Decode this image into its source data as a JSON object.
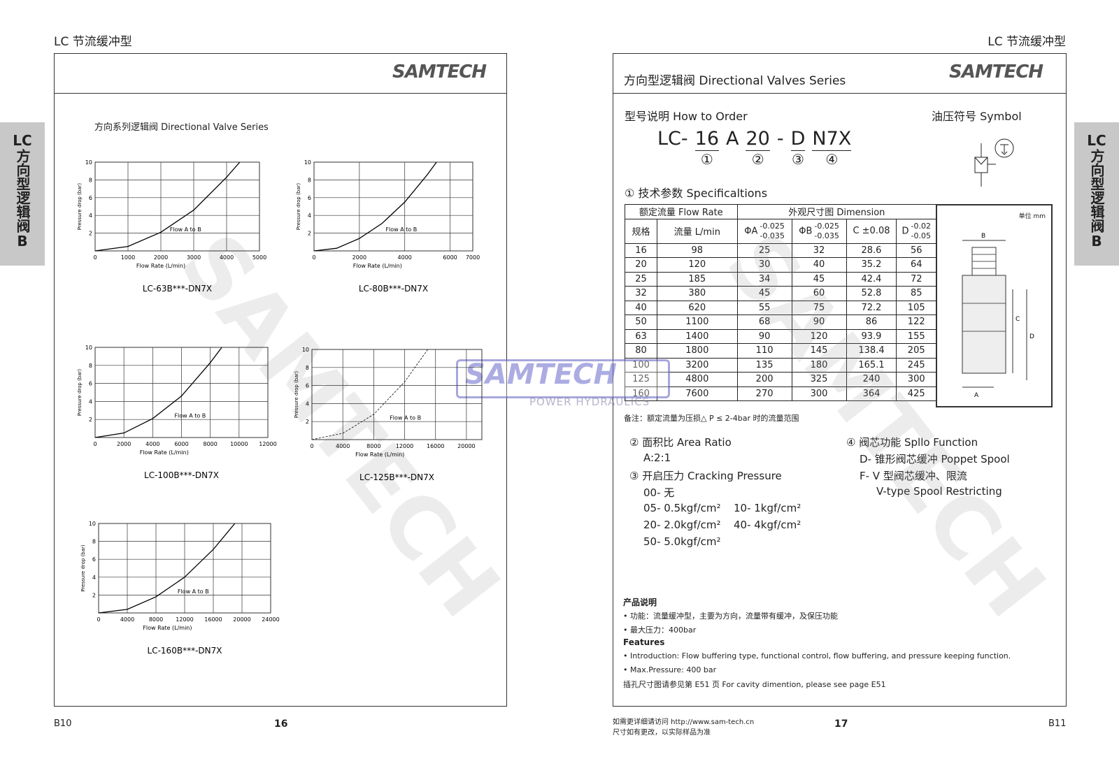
{
  "header": {
    "left": "LC 节流缓冲型",
    "right": "LC 节流缓冲型"
  },
  "side_tab": [
    "LC",
    "方向型逻辑阀",
    "B"
  ],
  "watermark": {
    "brand": "SAMTECH",
    "tagline": "POWER HYDRAULICS"
  },
  "left_page": {
    "logo": "SAMTECH",
    "section_title": "方向系列逻辑阀 Directional Valve Series",
    "charts": [
      {
        "type": "line",
        "title": "LC-63B***-DN7X",
        "x_label": "Flow Rate (L/min)",
        "y_label": "Pressure drop (bar)",
        "annotation": "Flow A to B",
        "color": "#000000",
        "xlim": [
          0,
          5000
        ],
        "ylim": [
          0,
          10
        ],
        "xticks": [
          0,
          1000,
          2000,
          3000,
          4000,
          5000
        ],
        "yticks": [
          2,
          4,
          6,
          8,
          10
        ],
        "x": [
          0,
          1000,
          2000,
          3000,
          4000,
          4400
        ],
        "values": [
          0,
          0.5,
          2.1,
          4.6,
          8.3,
          10
        ]
      },
      {
        "type": "line",
        "title": "LC-80B***-DN7X",
        "x_label": "Flow Rate (L/min)",
        "y_label": "Pressure drop (bar)",
        "annotation": "Flow A to B",
        "color": "#000000",
        "xlim": [
          0,
          7000
        ],
        "ylim": [
          0,
          10
        ],
        "xticks": [
          0,
          2000,
          4000,
          6000,
          7000
        ],
        "yticks": [
          2,
          4,
          6,
          8,
          10
        ],
        "x": [
          0,
          1000,
          2000,
          3000,
          4000,
          5000,
          5400
        ],
        "values": [
          0,
          0.3,
          1.4,
          3.1,
          5.5,
          8.6,
          10
        ]
      },
      {
        "type": "line",
        "title": "LC-100B***-DN7X",
        "x_label": "Flow Rate (L/min)",
        "y_label": "Pressure drop (bar)",
        "annotation": "Flow A to B",
        "color": "#000000",
        "xlim": [
          0,
          12000
        ],
        "ylim": [
          0,
          10
        ],
        "xticks": [
          0,
          2000,
          4000,
          6000,
          8000,
          10000,
          12000
        ],
        "yticks": [
          2,
          4,
          6,
          8,
          10
        ],
        "x": [
          0,
          2000,
          4000,
          6000,
          8000,
          8800
        ],
        "values": [
          0,
          0.5,
          2.1,
          4.6,
          8.3,
          10
        ]
      },
      {
        "type": "line",
        "title": "LC-125B***-DN7X",
        "x_label": "Flow Rate (L/min)",
        "y_label": "Pressure drop (bar)",
        "annotation": "Flow A to B",
        "color": "#000000",
        "line_style": "dashed",
        "xlim": [
          0,
          22000
        ],
        "ylim": [
          0,
          10
        ],
        "xticks": [
          0,
          4000,
          8000,
          12000,
          16000,
          20000
        ],
        "yticks": [
          2,
          4,
          6,
          8,
          10
        ],
        "x": [
          0,
          4000,
          8000,
          12000,
          15000
        ],
        "values": [
          0,
          0.7,
          2.8,
          6.4,
          10
        ]
      },
      {
        "type": "line",
        "title": "LC-160B***-DN7X",
        "x_label": "Flow Rate (L/min)",
        "y_label": "Pressure drop (bar)",
        "annotation": "Flow A to B",
        "color": "#000000",
        "xlim": [
          0,
          24000
        ],
        "ylim": [
          0,
          10
        ],
        "xticks": [
          0,
          4000,
          8000,
          12000,
          16000,
          20000,
          24000
        ],
        "yticks": [
          2,
          4,
          6,
          8,
          10
        ],
        "x": [
          0,
          4000,
          8000,
          12000,
          16000,
          19000
        ],
        "values": [
          0,
          0.4,
          1.8,
          4,
          7.1,
          10
        ]
      }
    ],
    "footer_code": "B10",
    "page_number": "16"
  },
  "right_page": {
    "title": "方向型逻辑阀 Directional Valves Series",
    "logo": "SAMTECH",
    "how_to_order": "型号说明 How to Order",
    "symbol_label": "油压符号 Symbol",
    "order_code": [
      {
        "text": "LC-"
      },
      {
        "text": "16",
        "marker": "①"
      },
      {
        "text": "A"
      },
      {
        "text": "20",
        "marker": "②"
      },
      {
        "text": "-"
      },
      {
        "text": "D",
        "marker": "③"
      },
      {
        "text": "N7X",
        "marker": "④"
      }
    ],
    "specs_title": "① 技术参数 Specificaltions",
    "table": {
      "group_headers": [
        "额定流量 Flow Rate",
        "外观尺寸图 Dimension"
      ],
      "columns": [
        {
          "label": "规格"
        },
        {
          "label": "流量 L/min"
        },
        {
          "label": "ΦA",
          "upper": "-0.025",
          "lower": "-0.035"
        },
        {
          "label": "ΦB",
          "upper": "-0.025",
          "lower": "-0.035"
        },
        {
          "label": "C ±0.08"
        },
        {
          "label": "D",
          "upper": "-0.02",
          "lower": "-0.05"
        }
      ],
      "rows": [
        [
          16,
          98,
          25,
          32,
          28.6,
          56
        ],
        [
          20,
          120,
          30,
          40,
          35.2,
          64
        ],
        [
          25,
          185,
          34,
          45,
          42.4,
          72
        ],
        [
          32,
          380,
          45,
          60,
          52.8,
          85
        ],
        [
          40,
          620,
          55,
          75,
          72.2,
          105
        ],
        [
          50,
          1100,
          68,
          90,
          86,
          122
        ],
        [
          63,
          1400,
          90,
          120,
          93.9,
          155
        ],
        [
          80,
          1800,
          110,
          145,
          138.4,
          205
        ],
        [
          100,
          3200,
          135,
          180,
          165.1,
          245
        ],
        [
          125,
          4800,
          200,
          325,
          240,
          300
        ],
        [
          160,
          7600,
          270,
          300,
          364,
          425
        ]
      ]
    },
    "drawing": {
      "unit": "单位 mm",
      "labels": [
        "B",
        "C",
        "D",
        "A"
      ]
    },
    "note": "备注：额定流量为压损△ P ≤ 2-4bar 时的流量范围",
    "area_ratio": {
      "title": "② 面积比 Area Ratio",
      "items": [
        "A:2:1"
      ]
    },
    "cracking_pressure": {
      "title": "③ 开启压力 Cracking Pressure",
      "items": [
        [
          "00- 无"
        ],
        [
          "05- 0.5kgf/cm²",
          "10- 1kgf/cm²"
        ],
        [
          "20- 2.0kgf/cm²",
          "40- 4kgf/cm²"
        ],
        [
          "50- 5.0kgf/cm²"
        ]
      ]
    },
    "spool_function": {
      "title": "④ 阀芯功能 Spllo Function",
      "items": [
        "D- 锥形阀芯缓冲 Poppet Spool",
        "F-  V 型阀芯缓冲、限流",
        "V-type Spool Restricting"
      ]
    },
    "description": {
      "title_cn": "产品说明",
      "cn": [
        "• 功能：流量缓冲型，主要为方向，流量带有缓冲，及保压功能",
        "• 最大压力：400bar"
      ],
      "title_en": "Features",
      "en": [
        "• Introduction: Flow buffering type, functional control, flow buffering, and pressure keeping function.",
        "• Max.Pressure: 400 bar"
      ],
      "cavity": "插孔尺寸图请参见第 E51 页 For cavity dimention, please see page E51"
    },
    "contact": [
      "如需更详细请访问 http://www.sam-tech.cn",
      "尺寸如有更改，以实际样品为准"
    ],
    "page_number": "17",
    "footer_code": "B11"
  }
}
